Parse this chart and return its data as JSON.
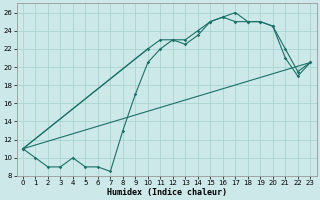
{
  "xlabel": "Humidex (Indice chaleur)",
  "bg_color": "#cce8e8",
  "line_color": "#1a7068",
  "grid_color": "#aad4d0",
  "xlim": [
    -0.5,
    23.5
  ],
  "ylim": [
    8,
    27
  ],
  "yticks": [
    8,
    10,
    12,
    14,
    16,
    18,
    20,
    22,
    24,
    26
  ],
  "xticks": [
    0,
    1,
    2,
    3,
    4,
    5,
    6,
    7,
    8,
    9,
    10,
    11,
    12,
    13,
    14,
    15,
    16,
    17,
    18,
    19,
    20,
    21,
    22,
    23
  ],
  "line1_x": [
    0,
    1,
    2,
    3,
    4,
    5,
    6,
    7,
    8,
    9,
    10,
    11,
    12,
    13,
    14,
    15,
    16,
    17,
    18,
    19,
    20,
    21,
    22,
    23
  ],
  "line1_y": [
    11,
    10,
    9,
    9,
    10,
    9,
    9,
    8.5,
    13,
    17,
    20.5,
    22,
    23,
    22.5,
    23.5,
    25,
    25.5,
    26,
    25,
    25,
    24.5,
    22,
    19.5,
    20.5
  ],
  "line2_x": [
    0,
    10,
    11,
    12,
    13,
    14,
    15,
    16,
    17,
    18,
    19,
    20,
    21,
    22,
    23
  ],
  "line2_y": [
    11,
    22,
    23,
    23,
    23,
    24,
    25,
    25.5,
    25,
    25,
    25,
    24.5,
    21,
    19,
    20.5
  ],
  "line3_x": [
    0,
    23
  ],
  "line3_y": [
    11,
    20.5
  ]
}
